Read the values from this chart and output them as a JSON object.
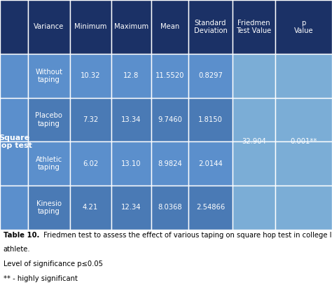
{
  "title_caption": "Table 10.",
  "caption_line1": " Friedmen test to assess the effect of various taping on square hop test in college level basketball",
  "caption_line2": "athlete.",
  "caption_line3": "Level of significance p≤0.05",
  "caption_line4": "** - highly significant",
  "header_row": [
    "Variance",
    "Minimum",
    "Maximum",
    "Mean",
    "Standard\nDeviation",
    "Friedmen\nTest Value",
    "p\nValue"
  ],
  "row_label": "Square\nhop test",
  "data_rows": [
    [
      "Without\ntaping",
      "10.32",
      "12.8",
      "11.5520",
      "0.8297"
    ],
    [
      "Placebo\ntaping",
      "7.32",
      "13.34",
      "9.7460",
      "1.8150"
    ],
    [
      "Athletic\ntaping",
      "6.02",
      "13.10",
      "8.9824",
      "2.0144"
    ],
    [
      "Kinesio\ntaping",
      "4.21",
      "12.34",
      "8.0368",
      "2.54866"
    ]
  ],
  "friedman_value": "32.904",
  "p_value": "0.001**",
  "color_header": "#1B3166",
  "color_left_col": "#5B8FCC",
  "color_row_odd": "#5B8FCC",
  "color_row_even": "#4A7AB5",
  "color_friedman_col": "#7BADD6",
  "color_white": "#FFFFFF",
  "fig_width": 4.74,
  "fig_height": 4.07
}
